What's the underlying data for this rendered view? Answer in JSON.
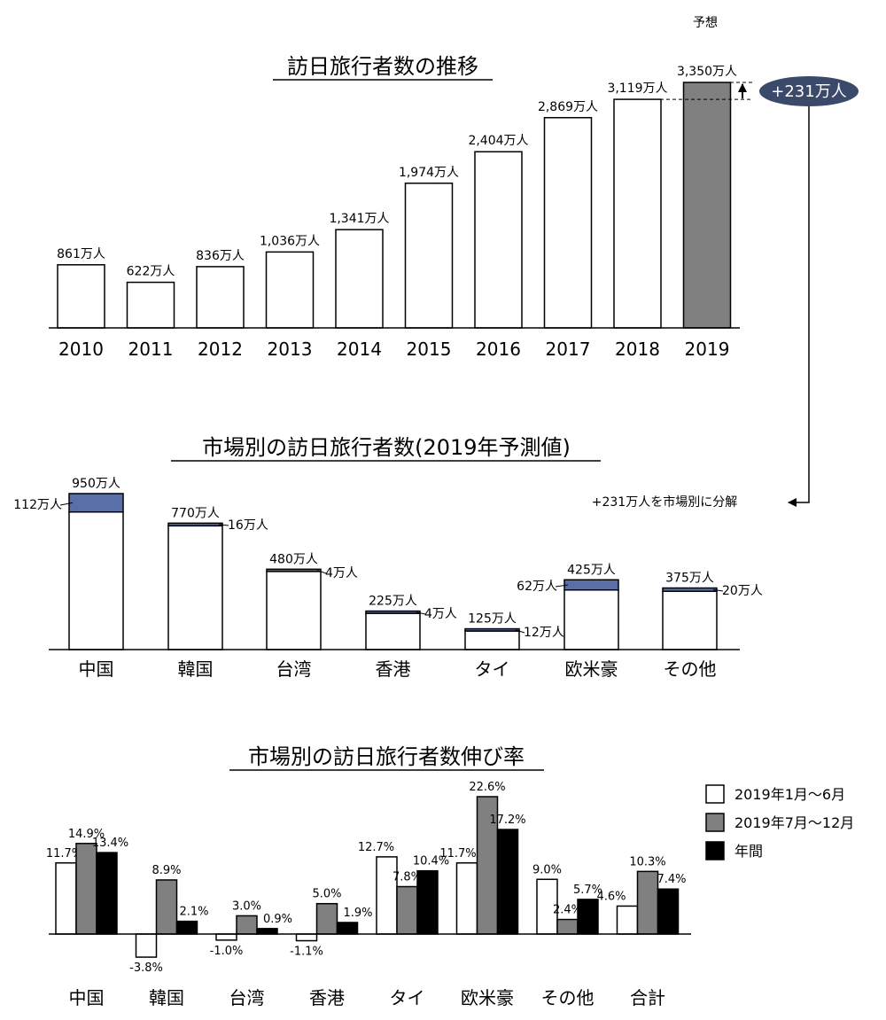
{
  "chart_data": [
    {
      "type": "bar",
      "title": "訪日旅行者数の推移",
      "categories": [
        "2010",
        "2011",
        "2012",
        "2013",
        "2014",
        "2015",
        "2016",
        "2017",
        "2018",
        "2019"
      ],
      "values": [
        861,
        622,
        836,
        1036,
        1341,
        1974,
        2404,
        2869,
        3119,
        3350
      ],
      "labels": [
        "861万人",
        "622万人",
        "836万人",
        "1,036万人",
        "1,341万人",
        "1,974万人",
        "2,404万人",
        "2,869万人",
        "3,119万人",
        "3,350万人"
      ],
      "forecast_label": "予想",
      "increase_label": "+231万人",
      "colors": {
        "actual": "#ffffff",
        "forecast": "#808080",
        "badge": "#3b4a6b"
      }
    },
    {
      "type": "bar",
      "stacked": true,
      "title": "市場別の訪日旅行者数(2019年予測値)",
      "categories": [
        "中国",
        "韓国",
        "台湾",
        "香港",
        "タイ",
        "欧米豪",
        "その他"
      ],
      "totals": [
        950,
        770,
        480,
        225,
        125,
        425,
        375
      ],
      "increments": [
        112,
        16,
        4,
        4,
        12,
        62,
        20
      ],
      "total_labels": [
        "950万人",
        "770万人",
        "480万人",
        "225万人",
        "125万人",
        "425万人",
        "375万人"
      ],
      "increment_labels": [
        "112万人",
        "16万人",
        "4万人",
        "4万人",
        "12万人",
        "62万人",
        "20万人"
      ],
      "note": "+231万人を市場別に分解",
      "colors": {
        "base": "#ffffff",
        "increment": "#5a6ea8"
      }
    },
    {
      "type": "bar",
      "title": "市場別の訪日旅行者数伸び率",
      "categories": [
        "中国",
        "韓国",
        "台湾",
        "香港",
        "タイ",
        "欧米豪",
        "その他",
        "合計"
      ],
      "series": [
        {
          "name": "2019年1月～6月",
          "values": [
            11.7,
            -3.8,
            -1.0,
            -1.1,
            12.7,
            11.7,
            9.0,
            4.6
          ],
          "labels": [
            "11.7%",
            "-3.8%",
            "-1.0%",
            "-1.1%",
            "12.7%",
            "11.7%",
            "9.0%",
            "4.6%"
          ],
          "color": "#ffffff"
        },
        {
          "name": "2019年7月～12月",
          "values": [
            14.9,
            8.9,
            3.0,
            5.0,
            7.8,
            22.6,
            2.4,
            10.3
          ],
          "labels": [
            "14.9%",
            "8.9%",
            "3.0%",
            "5.0%",
            "7.8%",
            "22.6%",
            "2.4%",
            "10.3%"
          ],
          "color": "#808080"
        },
        {
          "name": "年間",
          "values": [
            13.4,
            2.1,
            0.9,
            1.9,
            10.4,
            17.2,
            5.7,
            7.4
          ],
          "labels": [
            "13.4%",
            "2.1%",
            "0.9%",
            "1.9%",
            "10.4%",
            "17.2%",
            "5.7%",
            "7.4%"
          ],
          "color": "#000000"
        }
      ],
      "legend": "right"
    }
  ]
}
